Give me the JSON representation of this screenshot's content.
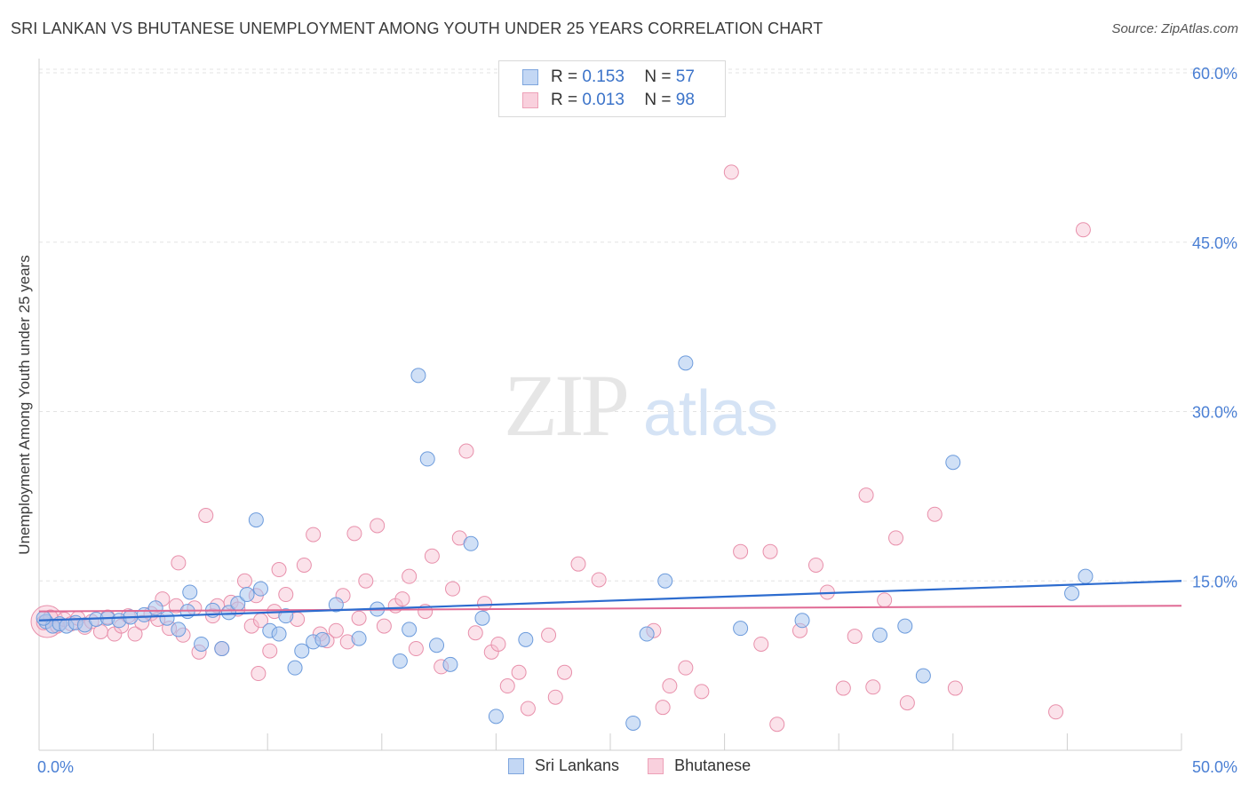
{
  "chart_data": {
    "type": "scatter",
    "title": "SRI LANKAN VS BHUTANESE UNEMPLOYMENT AMONG YOUTH UNDER 25 YEARS CORRELATION CHART",
    "source": "Source: ZipAtlas.com",
    "xlabel": "",
    "ylabel": "Unemployment Among Youth under 25 years",
    "xlim": [
      0,
      50
    ],
    "ylim": [
      0,
      62
    ],
    "x_tick_labels": [
      "0.0%",
      "50.0%"
    ],
    "y_ticks": [
      15,
      30,
      45,
      60
    ],
    "y_tick_labels": [
      "15.0%",
      "30.0%",
      "45.0%",
      "60.0%"
    ],
    "grid": true,
    "watermark": "ZIPatlas",
    "legend": {
      "position": "top-center",
      "entries": [
        {
          "name": "Sri Lankans",
          "r_label": "R =",
          "r_value": "0.153",
          "n_label": "N =",
          "n_value": "57"
        },
        {
          "name": "Bhutanese",
          "r_label": "R =",
          "r_value": "0.013",
          "n_label": "N =",
          "n_value": "98"
        }
      ]
    },
    "colors": {
      "sri_fill": "#a9c6ef",
      "sri_stroke": "#6c9bdc",
      "sri_line": "#2d6ccf",
      "bhu_fill": "#f6bfd0",
      "bhu_stroke": "#e890ab",
      "bhu_line": "#e06a94",
      "tick_text": "#4a7fd4",
      "grid": "#e3e3e3"
    },
    "series": [
      {
        "name": "Sri Lankans",
        "trend": {
          "x": [
            0,
            50
          ],
          "y": [
            11.5,
            15.0
          ]
        },
        "points": [
          [
            0.3,
            11.4
          ],
          [
            0.6,
            11.0
          ],
          [
            0.9,
            11.2
          ],
          [
            1.2,
            11.0
          ],
          [
            1.6,
            11.3
          ],
          [
            2.0,
            11.1
          ],
          [
            2.5,
            11.6
          ],
          [
            3.0,
            11.7
          ],
          [
            3.5,
            11.5
          ],
          [
            4.0,
            11.8
          ],
          [
            4.6,
            12.0
          ],
          [
            5.1,
            12.6
          ],
          [
            5.6,
            11.7
          ],
          [
            6.1,
            10.7
          ],
          [
            6.5,
            12.3
          ],
          [
            6.6,
            14.0
          ],
          [
            7.1,
            9.4
          ],
          [
            7.6,
            12.4
          ],
          [
            8.0,
            9.0
          ],
          [
            8.3,
            12.2
          ],
          [
            8.7,
            13.0
          ],
          [
            9.1,
            13.8
          ],
          [
            9.5,
            20.4
          ],
          [
            9.7,
            14.3
          ],
          [
            10.1,
            10.6
          ],
          [
            10.5,
            10.3
          ],
          [
            10.8,
            11.9
          ],
          [
            11.2,
            7.3
          ],
          [
            11.5,
            8.8
          ],
          [
            12.0,
            9.6
          ],
          [
            12.4,
            9.8
          ],
          [
            13.0,
            12.9
          ],
          [
            14.0,
            9.9
          ],
          [
            14.8,
            12.5
          ],
          [
            15.8,
            7.9
          ],
          [
            16.2,
            10.7
          ],
          [
            16.6,
            33.2
          ],
          [
            17.0,
            25.8
          ],
          [
            17.4,
            9.3
          ],
          [
            18.0,
            7.6
          ],
          [
            18.9,
            18.3
          ],
          [
            19.4,
            11.7
          ],
          [
            20.0,
            3.0
          ],
          [
            21.3,
            9.8
          ],
          [
            26.0,
            2.4
          ],
          [
            26.6,
            10.3
          ],
          [
            27.4,
            15.0
          ],
          [
            28.3,
            34.3
          ],
          [
            30.7,
            10.8
          ],
          [
            33.4,
            11.5
          ],
          [
            36.8,
            10.2
          ],
          [
            37.9,
            11.0
          ],
          [
            38.7,
            6.6
          ],
          [
            40.0,
            25.5
          ],
          [
            45.2,
            13.9
          ],
          [
            45.8,
            15.4
          ],
          [
            0.2,
            11.7
          ]
        ]
      },
      {
        "name": "Bhutanese",
        "trend": {
          "x": [
            0,
            50
          ],
          "y": [
            12.3,
            12.8
          ]
        },
        "points": [
          [
            0.2,
            11.3
          ],
          [
            0.5,
            11.8
          ],
          [
            0.8,
            11.0
          ],
          [
            1.1,
            11.6
          ],
          [
            1.4,
            11.2
          ],
          [
            1.7,
            11.7
          ],
          [
            2.0,
            10.9
          ],
          [
            2.3,
            11.4
          ],
          [
            2.7,
            10.5
          ],
          [
            3.0,
            11.8
          ],
          [
            3.3,
            10.3
          ],
          [
            3.6,
            11.0
          ],
          [
            3.9,
            11.9
          ],
          [
            4.2,
            10.3
          ],
          [
            4.5,
            11.3
          ],
          [
            4.9,
            12.1
          ],
          [
            5.2,
            11.6
          ],
          [
            5.4,
            13.4
          ],
          [
            5.7,
            10.8
          ],
          [
            6.0,
            12.8
          ],
          [
            6.3,
            10.2
          ],
          [
            6.1,
            16.6
          ],
          [
            6.8,
            12.6
          ],
          [
            7.0,
            8.7
          ],
          [
            7.3,
            20.8
          ],
          [
            7.6,
            11.9
          ],
          [
            7.8,
            12.8
          ],
          [
            8.0,
            9.0
          ],
          [
            8.4,
            13.1
          ],
          [
            8.7,
            12.5
          ],
          [
            9.0,
            15.0
          ],
          [
            9.3,
            11.0
          ],
          [
            9.5,
            13.7
          ],
          [
            9.7,
            11.5
          ],
          [
            9.6,
            6.8
          ],
          [
            10.1,
            8.8
          ],
          [
            10.3,
            12.3
          ],
          [
            10.5,
            16.0
          ],
          [
            10.8,
            13.8
          ],
          [
            11.3,
            11.6
          ],
          [
            11.6,
            16.4
          ],
          [
            12.0,
            19.1
          ],
          [
            12.3,
            10.3
          ],
          [
            12.6,
            9.7
          ],
          [
            13.0,
            10.6
          ],
          [
            13.3,
            13.7
          ],
          [
            13.5,
            9.6
          ],
          [
            13.8,
            19.2
          ],
          [
            14.0,
            11.7
          ],
          [
            14.3,
            15.0
          ],
          [
            14.8,
            19.9
          ],
          [
            15.1,
            11.0
          ],
          [
            15.6,
            12.8
          ],
          [
            15.9,
            13.4
          ],
          [
            16.2,
            15.4
          ],
          [
            16.5,
            9.0
          ],
          [
            16.9,
            12.3
          ],
          [
            17.2,
            17.2
          ],
          [
            17.6,
            7.4
          ],
          [
            18.1,
            14.3
          ],
          [
            18.4,
            18.8
          ],
          [
            18.7,
            26.5
          ],
          [
            19.1,
            10.4
          ],
          [
            19.5,
            13.0
          ],
          [
            19.8,
            8.7
          ],
          [
            20.1,
            9.4
          ],
          [
            20.5,
            5.7
          ],
          [
            21.0,
            6.9
          ],
          [
            21.4,
            3.7
          ],
          [
            22.3,
            10.2
          ],
          [
            22.6,
            4.7
          ],
          [
            23.0,
            6.9
          ],
          [
            23.6,
            16.5
          ],
          [
            24.5,
            15.1
          ],
          [
            26.9,
            10.6
          ],
          [
            27.3,
            3.8
          ],
          [
            27.6,
            5.7
          ],
          [
            28.3,
            7.3
          ],
          [
            29.0,
            5.2
          ],
          [
            30.3,
            51.2
          ],
          [
            30.7,
            17.6
          ],
          [
            31.6,
            9.4
          ],
          [
            32.0,
            17.6
          ],
          [
            32.3,
            2.3
          ],
          [
            33.3,
            10.6
          ],
          [
            34.0,
            16.4
          ],
          [
            34.5,
            14.0
          ],
          [
            35.2,
            5.5
          ],
          [
            35.7,
            10.1
          ],
          [
            36.2,
            22.6
          ],
          [
            36.5,
            5.6
          ],
          [
            37.0,
            13.3
          ],
          [
            37.5,
            18.8
          ],
          [
            38.0,
            4.2
          ],
          [
            39.2,
            20.9
          ],
          [
            40.1,
            5.5
          ],
          [
            44.5,
            3.4
          ],
          [
            45.7,
            46.1
          ]
        ]
      }
    ]
  },
  "extra": {
    "big_cluster_point": {
      "series": "Bhutanese",
      "x": 0.35,
      "y": 11.4
    }
  }
}
